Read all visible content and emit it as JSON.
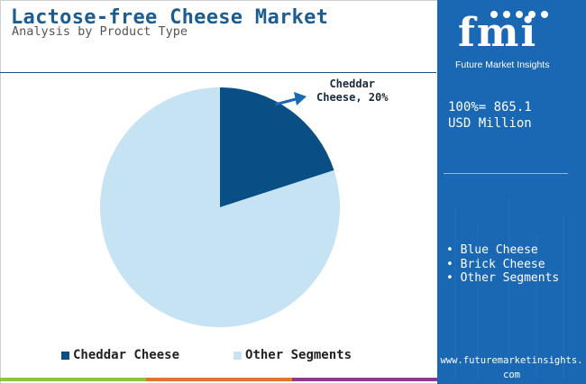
{
  "header": {
    "title": "Lactose-free Cheese Market",
    "subtitle": "Analysis by Product Type"
  },
  "side_panel": {
    "logo_text": "fmi",
    "logo_caption": "Future Market Insights",
    "total_line1": "100%= 865.1",
    "total_line2": "USD Million",
    "segments": [
      "• Blue Cheese",
      "• Brick Cheese",
      "• Other Segments"
    ],
    "website": "www.futuremarketinsights.com"
  },
  "colors": {
    "brand_blue": "#1a67b3",
    "cheddar": "#0a4e86",
    "other": "#c5e3f3",
    "title": "#1d5c8f"
  },
  "chart_data": {
    "type": "pie",
    "title": "Lactose-free Cheese Market",
    "subtitle": "Analysis by Product Type",
    "slices": [
      {
        "label": "Cheddar Cheese",
        "value": 20,
        "color": "#0a4e86"
      },
      {
        "label": "Other Segments",
        "value": 80,
        "color": "#c5e3f3"
      }
    ],
    "legend": [
      "Cheddar Cheese",
      "Other Segments"
    ],
    "legend_position": "bottom",
    "annotation_line1": "Cheddar",
    "annotation_line2": "Cheese, 20%"
  }
}
